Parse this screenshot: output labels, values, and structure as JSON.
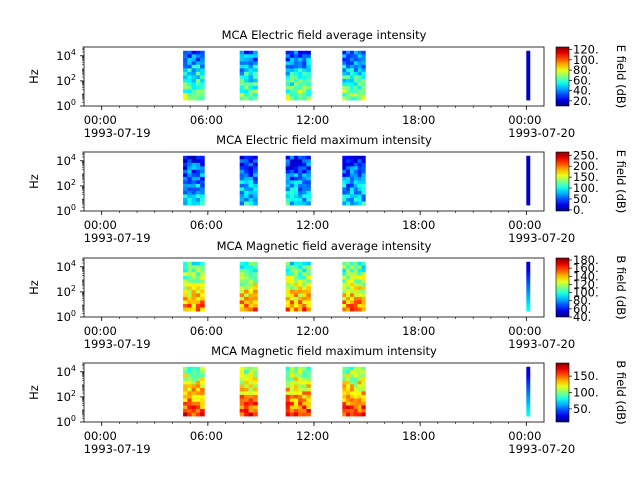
{
  "chart_data": [
    {
      "type": "heatmap",
      "title": "MCA  Electric field average intensity",
      "ylabel": "Hz",
      "x_ticks": [
        {
          "value": 0,
          "time": "00:00",
          "date": "1993-07-19"
        },
        {
          "value": 6,
          "time": "06:00",
          "date": ""
        },
        {
          "value": 12,
          "time": "12:00",
          "date": ""
        },
        {
          "value": 18,
          "time": "18:00",
          "date": ""
        },
        {
          "value": 24,
          "time": "00:00",
          "date": "1993-07-20"
        }
      ],
      "y_ticks": [
        {
          "value": 1,
          "label": "10",
          "exp": "0"
        },
        {
          "value": 100,
          "label": "10",
          "exp": "2"
        },
        {
          "value": 10000,
          "label": "10",
          "exp": "4"
        }
      ],
      "ylim": [
        1,
        50000
      ],
      "xlim": [
        -1,
        25
      ],
      "y_scale": "log",
      "colorbar": {
        "label": "E field (dB)",
        "range": [
          10,
          125
        ],
        "ticks": [
          {
            "value": 20,
            "label": "20."
          },
          {
            "value": 40,
            "label": "40."
          },
          {
            "value": 60,
            "label": "60."
          },
          {
            "value": 80,
            "label": "80."
          },
          {
            "value": 100,
            "label": "100."
          },
          {
            "value": 120,
            "label": "120."
          }
        ]
      },
      "segments": [
        [
          4.6,
          5.8
        ],
        [
          7.8,
          8.8
        ],
        [
          10.4,
          11.8
        ],
        [
          13.6,
          14.9
        ],
        [
          24.0,
          24.2
        ]
      ],
      "intensity_low": 35,
      "intensity_high": 70
    },
    {
      "type": "heatmap",
      "title": "MCA  Electric field maximum intensity",
      "ylabel": "Hz",
      "x_ticks": [
        {
          "value": 0,
          "time": "00:00",
          "date": "1993-07-19"
        },
        {
          "value": 6,
          "time": "06:00",
          "date": ""
        },
        {
          "value": 12,
          "time": "12:00",
          "date": ""
        },
        {
          "value": 18,
          "time": "18:00",
          "date": ""
        },
        {
          "value": 24,
          "time": "00:00",
          "date": "1993-07-20"
        }
      ],
      "y_ticks": [
        {
          "value": 1,
          "label": "10",
          "exp": "0"
        },
        {
          "value": 100,
          "label": "10",
          "exp": "2"
        },
        {
          "value": 10000,
          "label": "10",
          "exp": "4"
        }
      ],
      "ylim": [
        1,
        50000
      ],
      "xlim": [
        -1,
        25
      ],
      "y_scale": "log",
      "colorbar": {
        "label": "E field (dB)",
        "range": [
          -5,
          265
        ],
        "ticks": [
          {
            "value": 0,
            "label": "0."
          },
          {
            "value": 50,
            "label": "50."
          },
          {
            "value": 100,
            "label": "100."
          },
          {
            "value": 150,
            "label": "150."
          },
          {
            "value": 200,
            "label": "200."
          },
          {
            "value": 250,
            "label": "250."
          }
        ]
      },
      "segments": [
        [
          4.6,
          5.8
        ],
        [
          7.8,
          8.8
        ],
        [
          10.4,
          11.8
        ],
        [
          13.6,
          14.9
        ],
        [
          24.0,
          24.2
        ]
      ],
      "intensity_low": 40,
      "intensity_high": 90
    },
    {
      "type": "heatmap",
      "title": "MCA  Magnetic field average intensity",
      "ylabel": "Hz",
      "x_ticks": [
        {
          "value": 0,
          "time": "00:00",
          "date": "1993-07-19"
        },
        {
          "value": 6,
          "time": "06:00",
          "date": ""
        },
        {
          "value": 12,
          "time": "12:00",
          "date": ""
        },
        {
          "value": 18,
          "time": "18:00",
          "date": ""
        },
        {
          "value": 24,
          "time": "00:00",
          "date": "1993-07-20"
        }
      ],
      "y_ticks": [
        {
          "value": 1,
          "label": "10",
          "exp": "0"
        },
        {
          "value": 100,
          "label": "10",
          "exp": "2"
        },
        {
          "value": 10000,
          "label": "10",
          "exp": "4"
        }
      ],
      "ylim": [
        1,
        50000
      ],
      "xlim": [
        -1,
        25
      ],
      "y_scale": "log",
      "colorbar": {
        "label": "B field (dB)",
        "range": [
          40,
          185
        ],
        "ticks": [
          {
            "value": 40,
            "label": "40."
          },
          {
            "value": 60,
            "label": "60."
          },
          {
            "value": 80,
            "label": "80."
          },
          {
            "value": 100,
            "label": "100."
          },
          {
            "value": 120,
            "label": "120."
          },
          {
            "value": 140,
            "label": "140."
          },
          {
            "value": 160,
            "label": "160."
          },
          {
            "value": 180,
            "label": "180."
          }
        ]
      },
      "segments": [
        [
          4.6,
          5.8
        ],
        [
          7.8,
          8.8
        ],
        [
          10.4,
          11.8
        ],
        [
          13.6,
          14.9
        ],
        [
          24.0,
          24.2
        ]
      ],
      "intensity_low": 100,
      "intensity_high": 150
    },
    {
      "type": "heatmap",
      "title": "MCA  Magnetic field maximum intensity",
      "ylabel": "Hz",
      "x_ticks": [
        {
          "value": 0,
          "time": "00:00",
          "date": "1993-07-19"
        },
        {
          "value": 6,
          "time": "06:00",
          "date": ""
        },
        {
          "value": 12,
          "time": "12:00",
          "date": ""
        },
        {
          "value": 18,
          "time": "18:00",
          "date": ""
        },
        {
          "value": 24,
          "time": "00:00",
          "date": "1993-07-20"
        }
      ],
      "y_ticks": [
        {
          "value": 1,
          "label": "10",
          "exp": "0"
        },
        {
          "value": 100,
          "label": "10",
          "exp": "2"
        },
        {
          "value": 10000,
          "label": "10",
          "exp": "4"
        }
      ],
      "ylim": [
        1,
        50000
      ],
      "xlim": [
        -1,
        25
      ],
      "y_scale": "log",
      "colorbar": {
        "label": "B field (dB)",
        "range": [
          10,
          190
        ],
        "ticks": [
          {
            "value": 50,
            "label": "50."
          },
          {
            "value": 100,
            "label": "100."
          },
          {
            "value": 150,
            "label": "150."
          }
        ]
      },
      "segments": [
        [
          4.6,
          5.8
        ],
        [
          7.8,
          8.8
        ],
        [
          10.4,
          11.8
        ],
        [
          13.6,
          14.9
        ],
        [
          24.0,
          24.2
        ]
      ],
      "intensity_low": 100,
      "intensity_high": 160
    }
  ]
}
